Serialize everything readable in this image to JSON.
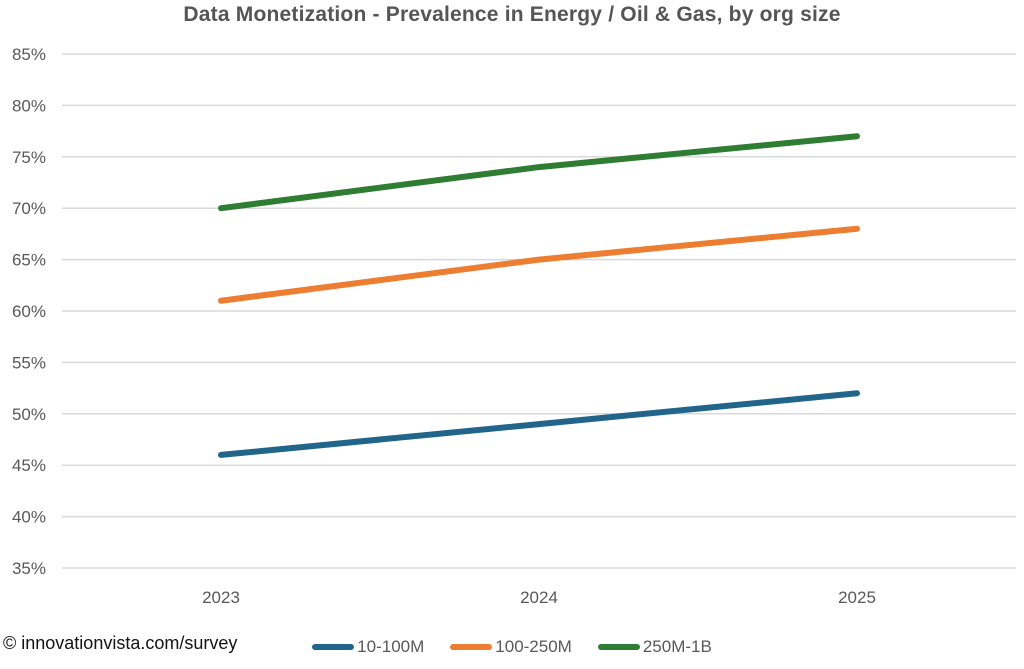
{
  "title": "Data Monetization - Prevalence in Energy / Oil & Gas, by org size",
  "footer": {
    "source_label": "© innovationvista.com/survey"
  },
  "colors": {
    "title_text": "#555555",
    "axis_text": "#595959",
    "gridline": "#D9D9D9",
    "background": "#FFFFFF",
    "footer_text": "#141414",
    "series_blue": "#21658B",
    "series_orange": "#ED7D31",
    "series_green": "#2E7D32"
  },
  "chart_data": {
    "type": "line",
    "title": "Data Monetization - Prevalence in Energy / Oil & Gas, by org size",
    "categories": [
      "2023",
      "2024",
      "2025"
    ],
    "series": [
      {
        "name": "10-100M",
        "values": [
          46,
          49,
          52
        ],
        "color": "#21658B"
      },
      {
        "name": "100-250M",
        "values": [
          61,
          65,
          68
        ],
        "color": "#ED7D31"
      },
      {
        "name": "250M-1B",
        "values": [
          70,
          74,
          77
        ],
        "color": "#2E7D32"
      }
    ],
    "xlabel": "",
    "ylabel": "",
    "ylim": [
      35,
      85
    ],
    "ytick_step": 5,
    "ytick_labels": [
      "35%",
      "40%",
      "45%",
      "50%",
      "55%",
      "60%",
      "65%",
      "70%",
      "75%",
      "80%",
      "85%"
    ],
    "value_format": "percent",
    "grid": true,
    "legend_position": "bottom",
    "line_width": 6
  }
}
